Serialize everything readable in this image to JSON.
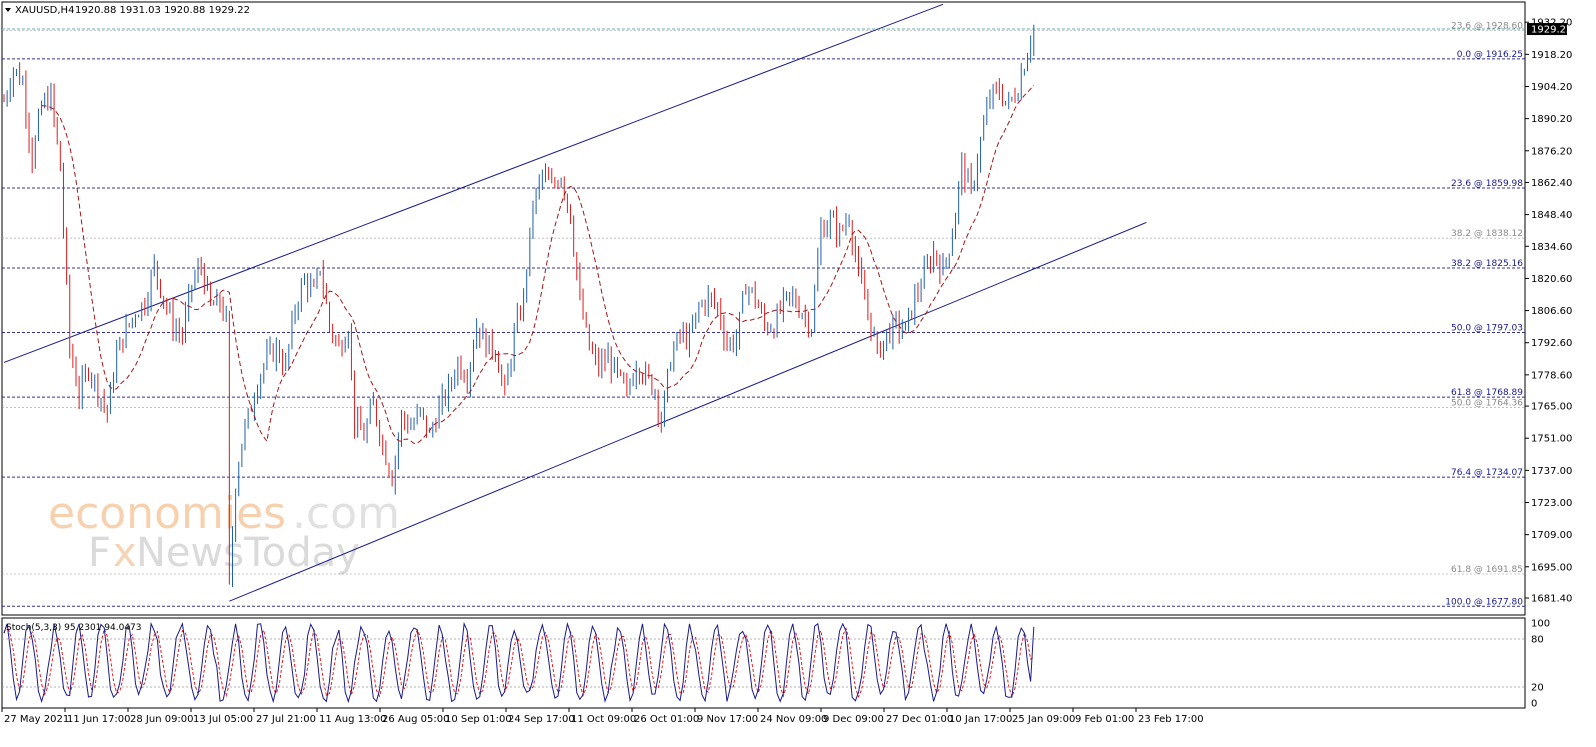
{
  "header": {
    "symbol": "XAUUSD,H4",
    "ohlc": "1920.88 1931.03 1920.88 1929.22"
  },
  "watermark": {
    "line1_a": "economies",
    "line1_b": ".com",
    "line2_a": "F",
    "line2_b": "x",
    "line2_c": "NewsToday"
  },
  "stoch": {
    "label": "Stoch(5,3,3) 95.2301 94.0473",
    "levels": [
      100,
      80,
      20,
      0
    ],
    "level_labels": [
      "100",
      "80",
      "20",
      "0"
    ],
    "dotted_levels": [
      80,
      20
    ]
  },
  "colors": {
    "bull": "#1f5fae",
    "bear": "#e01b1b",
    "ma": "#a31818",
    "channel": "#1a1a8c",
    "fib_main": "#1a1a8c",
    "fib_secondary": "#8a8a8a",
    "current_price_line": "#5fb3b3",
    "stoch_main": "#1a1a8c",
    "stoch_signal": "#e01b1b",
    "price_tag_bg": "#000000",
    "price_tag_text": "#ffffff"
  },
  "chart_data": {
    "type": "candlestick",
    "instrument": "XAUUSD",
    "timeframe": "H4",
    "current_price": 1929.22,
    "current_price_label": "1929.22",
    "ylim": [
      1674,
      1941
    ],
    "y_ticks": [
      1932.2,
      1918.2,
      1904.2,
      1890.2,
      1876.2,
      1862.4,
      1848.4,
      1834.6,
      1820.6,
      1806.6,
      1792.6,
      1778.6,
      1765.0,
      1751.0,
      1737.0,
      1723.0,
      1709.0,
      1695.0,
      1681.4
    ],
    "y_tick_labels": [
      "1932.20",
      "1918.20",
      "1904.20",
      "1890.20",
      "1876.20",
      "1862.40",
      "1848.40",
      "1834.60",
      "1820.60",
      "1806.60",
      "1792.60",
      "1778.60",
      "1765.00",
      "1751.00",
      "1737.00",
      "1723.00",
      "1709.00",
      "1695.00",
      "1681.40"
    ],
    "x_tick_labels": [
      "27 May 2021",
      "11 Jun 17:00",
      "28 Jun 09:00",
      "13 Jul 05:00",
      "27 Jul 21:00",
      "11 Aug 13:00",
      "26 Aug 05:00",
      "10 Sep 01:00",
      "24 Sep 17:00",
      "11 Oct 09:00",
      "26 Oct 01:00",
      "9 Nov 17:00",
      "24 Nov 09:00",
      "9 Dec 09:00",
      "27 Dec 01:00",
      "10 Jan 17:00",
      "25 Jan 09:00",
      "9 Feb 01:00",
      "23 Feb 17:00"
    ],
    "fib_levels": [
      {
        "label": "23.6 @ 1928.60",
        "price": 1928.6,
        "style": "secondary"
      },
      {
        "label": "0.0 @ 1916.25",
        "price": 1916.25,
        "style": "main"
      },
      {
        "label": "23.6 @ 1859.98",
        "price": 1859.98,
        "style": "main"
      },
      {
        "label": "38.2 @ 1838.12",
        "price": 1838.12,
        "style": "secondary"
      },
      {
        "label": "38.2 @ 1825.16",
        "price": 1825.16,
        "style": "main"
      },
      {
        "label": "50.0 @ 1797.03",
        "price": 1797.03,
        "style": "main"
      },
      {
        "label": "61.8 @ 1768.89",
        "price": 1768.89,
        "style": "main"
      },
      {
        "label": "50.0 @ 1764.36",
        "price": 1764.36,
        "style": "secondary"
      },
      {
        "label": "76.4 @ 1734.07",
        "price": 1734.07,
        "style": "main"
      },
      {
        "label": "61.8 @ 1691.85",
        "price": 1691.85,
        "style": "secondary"
      },
      {
        "label": "100.0 @ 1677.80",
        "price": 1677.8,
        "style": "main"
      }
    ],
    "channel": {
      "upper": [
        {
          "bar": 0,
          "price": 1784
        },
        {
          "bar": 300,
          "price": 1940
        }
      ],
      "lower": [
        {
          "bar": 72,
          "price": 1680
        },
        {
          "bar": 365,
          "price": 1845
        }
      ]
    },
    "bar_count": 365,
    "price_path": [
      [
        0,
        1898
      ],
      [
        3,
        1912
      ],
      [
        6,
        1906
      ],
      [
        9,
        1872
      ],
      [
        12,
        1896
      ],
      [
        15,
        1900
      ],
      [
        18,
        1868
      ],
      [
        21,
        1790
      ],
      [
        24,
        1770
      ],
      [
        27,
        1782
      ],
      [
        30,
        1772
      ],
      [
        33,
        1762
      ],
      [
        36,
        1788
      ],
      [
        39,
        1798
      ],
      [
        42,
        1806
      ],
      [
        45,
        1810
      ],
      [
        48,
        1826
      ],
      [
        51,
        1812
      ],
      [
        54,
        1800
      ],
      [
        57,
        1796
      ],
      [
        60,
        1818
      ],
      [
        63,
        1826
      ],
      [
        66,
        1808
      ],
      [
        69,
        1810
      ],
      [
        71,
        1802
      ],
      [
        72,
        1686
      ],
      [
        74,
        1732
      ],
      [
        76,
        1750
      ],
      [
        78,
        1760
      ],
      [
        81,
        1776
      ],
      [
        84,
        1786
      ],
      [
        87,
        1790
      ],
      [
        90,
        1782
      ],
      [
        93,
        1808
      ],
      [
        96,
        1820
      ],
      [
        99,
        1814
      ],
      [
        101,
        1826
      ],
      [
        104,
        1800
      ],
      [
        107,
        1790
      ],
      [
        110,
        1800
      ],
      [
        112,
        1758
      ],
      [
        115,
        1752
      ],
      [
        118,
        1766
      ],
      [
        121,
        1748
      ],
      [
        124,
        1734
      ],
      [
        127,
        1760
      ],
      [
        130,
        1756
      ],
      [
        133,
        1762
      ],
      [
        136,
        1752
      ],
      [
        139,
        1764
      ],
      [
        142,
        1772
      ],
      [
        145,
        1784
      ],
      [
        148,
        1778
      ],
      [
        151,
        1800
      ],
      [
        154,
        1792
      ],
      [
        157,
        1790
      ],
      [
        160,
        1770
      ],
      [
        163,
        1796
      ],
      [
        166,
        1812
      ],
      [
        169,
        1852
      ],
      [
        172,
        1866
      ],
      [
        175,
        1860
      ],
      [
        178,
        1866
      ],
      [
        181,
        1848
      ],
      [
        184,
        1810
      ],
      [
        187,
        1790
      ],
      [
        190,
        1782
      ],
      [
        193,
        1786
      ],
      [
        196,
        1778
      ],
      [
        199,
        1770
      ],
      [
        202,
        1784
      ],
      [
        205,
        1778
      ],
      [
        208,
        1772
      ],
      [
        210,
        1758
      ],
      [
        213,
        1786
      ],
      [
        216,
        1796
      ],
      [
        219,
        1794
      ],
      [
        222,
        1808
      ],
      [
        225,
        1812
      ],
      [
        228,
        1808
      ],
      [
        231,
        1792
      ],
      [
        234,
        1794
      ],
      [
        237,
        1818
      ],
      [
        240,
        1812
      ],
      [
        243,
        1800
      ],
      [
        246,
        1800
      ],
      [
        249,
        1810
      ],
      [
        252,
        1812
      ],
      [
        255,
        1806
      ],
      [
        258,
        1800
      ],
      [
        261,
        1842
      ],
      [
        264,
        1846
      ],
      [
        267,
        1840
      ],
      [
        270,
        1848
      ],
      [
        273,
        1822
      ],
      [
        276,
        1806
      ],
      [
        279,
        1788
      ],
      [
        282,
        1796
      ],
      [
        285,
        1800
      ],
      [
        288,
        1798
      ],
      [
        291,
        1812
      ],
      [
        294,
        1822
      ],
      [
        297,
        1832
      ],
      [
        300,
        1824
      ],
      [
        303,
        1840
      ],
      [
        306,
        1870
      ],
      [
        309,
        1858
      ],
      [
        312,
        1880
      ],
      [
        315,
        1900
      ],
      [
        318,
        1902
      ],
      [
        321,
        1896
      ],
      [
        324,
        1904
      ],
      [
        327,
        1920
      ],
      [
        329,
        1930
      ]
    ]
  }
}
